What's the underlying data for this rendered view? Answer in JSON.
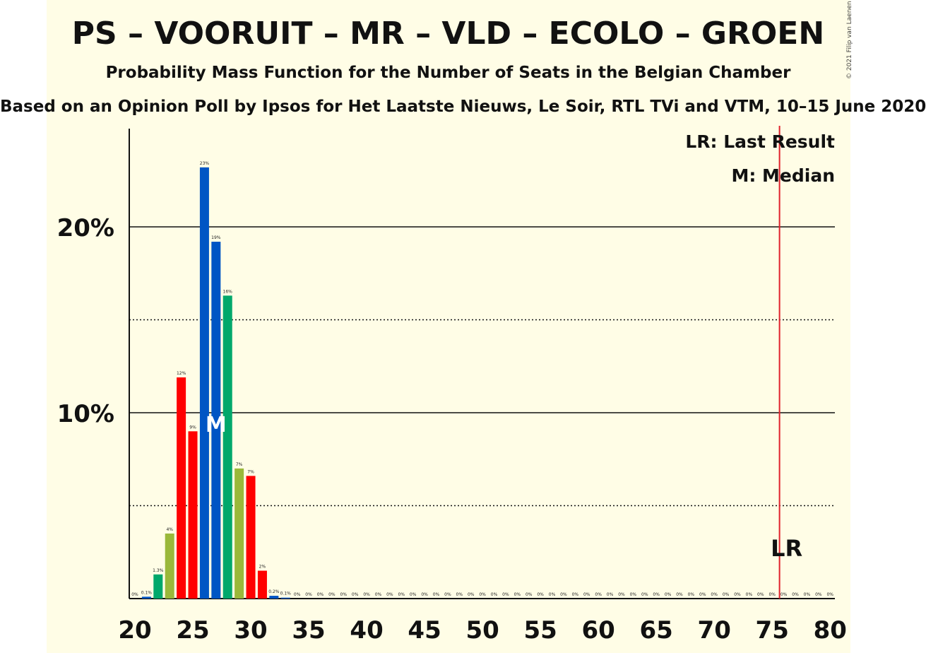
{
  "header": {
    "title": "PS – VOORUIT – MR – VLD – ECOLO – GROEN",
    "subtitle": "Probability Mass Function for the Number of Seats in the Belgian Chamber",
    "source": "Based on an Opinion Poll by Ipsos for Het Laatste Nieuws, Le Soir, RTL TVi and VTM, 10–15 June 2020",
    "copyright": "© 2021 Filip van Laenen"
  },
  "legend": {
    "last_result": "LR: Last Result",
    "median": "M: Median"
  },
  "colors": {
    "background": "#fffde6",
    "ps": "#ff0000",
    "vooruit": "#ff0000",
    "mr": "#0055c4",
    "vld": "#0055c4",
    "ecolo": "#00a86b",
    "groen": "#9ab83a",
    "last_result_line": "#e0202a"
  },
  "chart_data": {
    "type": "bar",
    "x": [
      20,
      21,
      22,
      23,
      24,
      25,
      26,
      27,
      28,
      29,
      30,
      31,
      32,
      33,
      34,
      35,
      36,
      37,
      38,
      39,
      40,
      41,
      42,
      43,
      44,
      45,
      46,
      47,
      48,
      49,
      50,
      51,
      52,
      53,
      54,
      55,
      56,
      57,
      58,
      59,
      60,
      61,
      62,
      63,
      64,
      65,
      66,
      67,
      68,
      69,
      70,
      71,
      72,
      73,
      74,
      75,
      76,
      77,
      78,
      79,
      80
    ],
    "values": [
      0,
      0.1,
      1.3,
      3.5,
      11.9,
      9,
      23.2,
      19.2,
      16.3,
      7,
      6.6,
      1.5,
      0.15,
      0.05,
      0,
      0,
      0,
      0,
      0,
      0,
      0,
      0,
      0,
      0,
      0,
      0,
      0,
      0,
      0,
      0,
      0,
      0,
      0,
      0,
      0,
      0,
      0,
      0,
      0,
      0,
      0,
      0,
      0,
      0,
      0,
      0,
      0,
      0,
      0,
      0,
      0,
      0,
      0,
      0,
      0,
      0,
      0,
      0,
      0,
      0,
      0
    ],
    "labels": [
      "0%",
      "0.1%",
      "1.3%",
      "4%",
      "12%",
      "9%",
      "23%",
      "19%",
      "16%",
      "7%",
      "7%",
      "2%",
      "0.2%",
      "0.1%",
      "0%",
      "0%",
      "0%",
      "0%",
      "0%",
      "0%",
      "0%",
      "0%",
      "0%",
      "0%",
      "0%",
      "0%",
      "0%",
      "0%",
      "0%",
      "0%",
      "0%",
      "0%",
      "0%",
      "0%",
      "0%",
      "0%",
      "0%",
      "0%",
      "0%",
      "0%",
      "0%",
      "0%",
      "0%",
      "0%",
      "0%",
      "0%",
      "0%",
      "0%",
      "0%",
      "0%",
      "0%",
      "0%",
      "0%",
      "0%",
      "0%",
      "0%",
      "0%",
      "0%",
      "0%",
      "0%",
      "0%"
    ],
    "bar_colors": [
      "#ff0000",
      "#0055c4",
      "#00a86b",
      "#9ab83a",
      "#ff0000",
      "#ff0000",
      "#0055c4",
      "#0055c4",
      "#00a86b",
      "#9ab83a",
      "#ff0000",
      "#ff0000",
      "#0055c4",
      "#0055c4",
      "#00a86b",
      "#9ab83a",
      "#ff0000",
      "#ff0000",
      "#0055c4",
      "#0055c4",
      "#00a86b",
      "#9ab83a",
      "#ff0000",
      "#ff0000",
      "#0055c4",
      "#0055c4",
      "#00a86b",
      "#9ab83a",
      "#ff0000",
      "#ff0000",
      "#0055c4",
      "#0055c4",
      "#00a86b",
      "#9ab83a",
      "#ff0000",
      "#ff0000",
      "#0055c4",
      "#0055c4",
      "#00a86b",
      "#9ab83a",
      "#ff0000",
      "#ff0000",
      "#0055c4",
      "#0055c4",
      "#00a86b",
      "#9ab83a",
      "#ff0000",
      "#ff0000",
      "#0055c4",
      "#0055c4",
      "#00a86b",
      "#9ab83a",
      "#ff0000",
      "#ff0000",
      "#0055c4",
      "#0055c4",
      "#00a86b",
      "#9ab83a",
      "#ff0000",
      "#ff0000",
      "#0055c4"
    ],
    "xticks": [
      20,
      25,
      30,
      35,
      40,
      45,
      50,
      55,
      60,
      65,
      70,
      75,
      80
    ],
    "xtick_labels": [
      "20",
      "25",
      "30",
      "35",
      "40",
      "45",
      "50",
      "55",
      "60",
      "65",
      "70",
      "75",
      "80"
    ],
    "yticks_major": [
      10,
      20
    ],
    "ytick_labels": [
      "10%",
      "20%"
    ],
    "yticks_minor": [
      5,
      15
    ],
    "ylim": [
      0,
      25
    ],
    "xlim": [
      20,
      80
    ],
    "median": 27,
    "median_label": "M",
    "last_result": 76,
    "last_result_label": "LR",
    "grid": true,
    "legend_position": "top-right"
  }
}
